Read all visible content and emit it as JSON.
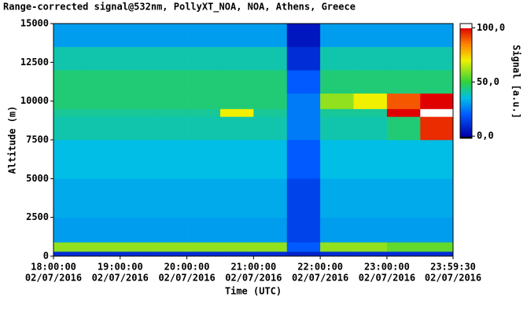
{
  "chart_data": {
    "type": "heatmap",
    "title": "Range-corrected signal@532nm, PollyXT_NOA, NOA, Athens, Greece",
    "xlabel": "Time (UTC)",
    "ylabel": "Altitude (m)",
    "colorbar_label": "Signal [a.u.]",
    "xlim": [
      18,
      23.99167
    ],
    "xticks": [
      {
        "value": 18,
        "label": "18:00:00"
      },
      {
        "value": 19,
        "label": "19:00:00"
      },
      {
        "value": 20,
        "label": "20:00:00"
      },
      {
        "value": 21,
        "label": "21:00:00"
      },
      {
        "value": 22,
        "label": "22:00:00"
      },
      {
        "value": 23,
        "label": "23:00:00"
      },
      {
        "value": 23.99167,
        "label": "23:59:30"
      }
    ],
    "xtick_dates": [
      "02/07/2016",
      "02/07/2016",
      "02/07/2016",
      "02/07/2016",
      "02/07/2016",
      "02/07/2016",
      "02/07/2016"
    ],
    "ylim": [
      0,
      15000
    ],
    "yticks": [
      0,
      2500,
      5000,
      7500,
      10000,
      12500,
      15000
    ],
    "clim": [
      -2,
      104
    ],
    "cticks": [
      {
        "value": 0,
        "label": "0,0"
      },
      {
        "value": 50,
        "label": "50,0"
      },
      {
        "value": 100,
        "label": "100,0"
      }
    ],
    "xbins": [
      18,
      18.5,
      19,
      19.5,
      20,
      20.5,
      21,
      21.5,
      22,
      22.5,
      23,
      23.5,
      23.99167
    ],
    "ybins": [
      0,
      300,
      900,
      2500,
      5000,
      7500,
      9000,
      9500,
      10500,
      12000,
      13500,
      15000
    ],
    "z": [
      [
        10,
        10,
        10,
        10,
        10,
        10,
        10,
        8,
        10,
        10,
        10,
        10
      ],
      [
        60,
        60,
        60,
        60,
        60,
        60,
        60,
        20,
        60,
        60,
        55,
        55
      ],
      [
        30,
        30,
        30,
        30,
        30,
        30,
        30,
        15,
        30,
        30,
        30,
        30
      ],
      [
        32,
        32,
        32,
        32,
        32,
        32,
        32,
        15,
        32,
        32,
        32,
        32
      ],
      [
        35,
        35,
        35,
        35,
        35,
        35,
        35,
        20,
        35,
        35,
        35,
        35
      ],
      [
        40,
        40,
        40,
        40,
        40,
        40,
        40,
        25,
        40,
        40,
        45,
        95
      ],
      [
        42,
        42,
        42,
        42,
        42,
        70,
        42,
        25,
        42,
        42,
        100,
        110
      ],
      [
        45,
        45,
        45,
        45,
        45,
        45,
        45,
        25,
        60,
        70,
        90,
        100
      ],
      [
        45,
        45,
        45,
        45,
        45,
        45,
        45,
        20,
        45,
        45,
        45,
        45
      ],
      [
        40,
        40,
        40,
        40,
        40,
        40,
        40,
        10,
        40,
        40,
        40,
        40
      ],
      [
        30,
        30,
        30,
        30,
        30,
        30,
        30,
        5,
        30,
        30,
        30,
        30
      ]
    ]
  }
}
